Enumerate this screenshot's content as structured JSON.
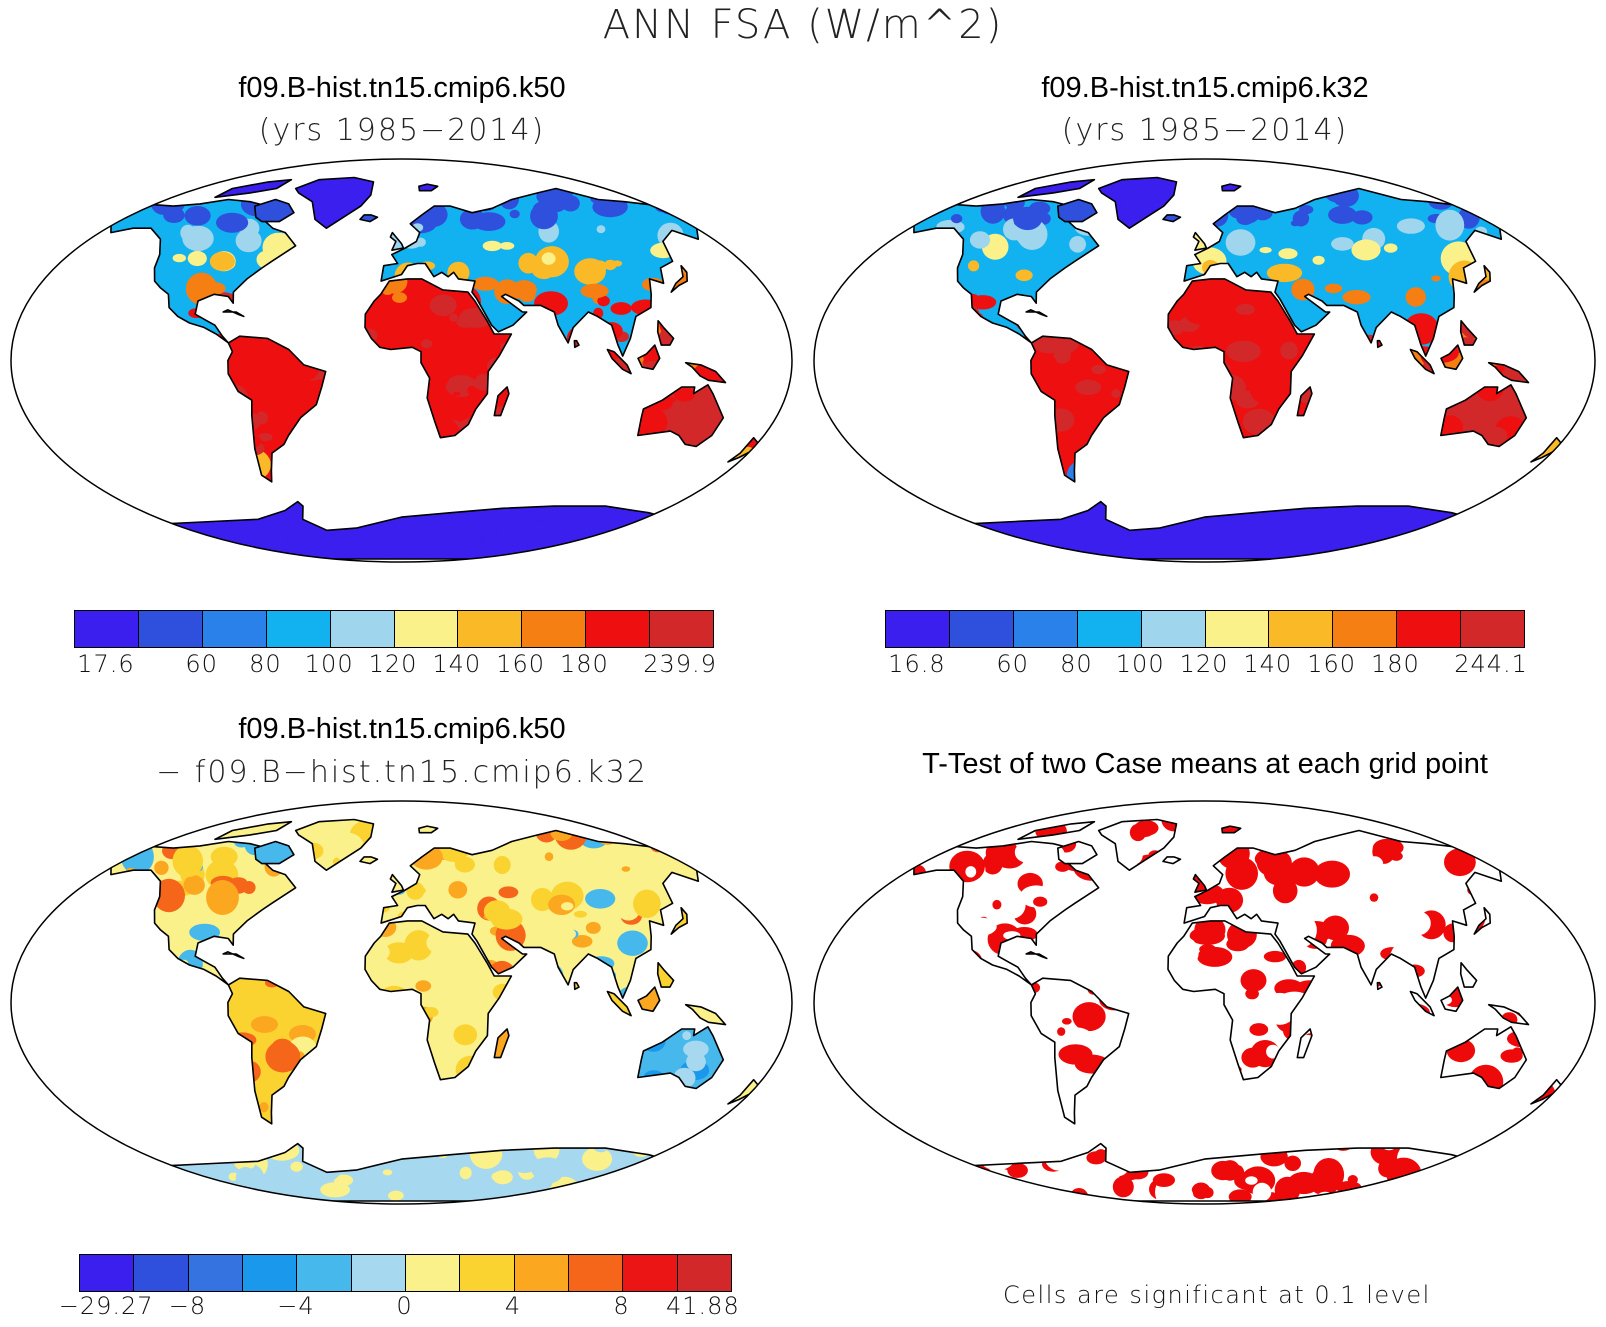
{
  "figure": {
    "title": "ANN FSA (W/m^2)"
  },
  "colors": {
    "abs": [
      "#3b1fef",
      "#2e50dc",
      "#2a81ea",
      "#12b1f0",
      "#9fd6ee",
      "#fbf18a",
      "#fab926",
      "#f57f12",
      "#ee1010",
      "#d3282a"
    ],
    "diff": [
      "#3b1fef",
      "#2e50dc",
      "#3574e0",
      "#1a98ec",
      "#47b8ec",
      "#a6d8ef",
      "#fbf18a",
      "#fad331",
      "#fba720",
      "#f5661a",
      "#ec1515",
      "#d3282a"
    ],
    "sig": "#ee0a0a",
    "land_outline": "#000000"
  },
  "panels": [
    {
      "id": "k50",
      "title": "f09.B-hist.tn15.cmip6.k50",
      "subtitle": "(yrs 1985−2014)",
      "colorbar_labels": [
        "17.6",
        "60",
        "80",
        "100",
        "120",
        "140",
        "160",
        "180",
        "239.9"
      ]
    },
    {
      "id": "k32",
      "title": "f09.B-hist.tn15.cmip6.k32",
      "subtitle": "(yrs 1985−2014)",
      "colorbar_labels": [
        "16.8",
        "60",
        "80",
        "100",
        "120",
        "140",
        "160",
        "180",
        "244.1"
      ]
    },
    {
      "id": "diff",
      "title": "f09.B-hist.tn15.cmip6.k50",
      "subtitle": "− f09.B−hist.tn15.cmip6.k32",
      "colorbar_labels": [
        "−29.27",
        "−8",
        "−4",
        "0",
        "4",
        "8",
        "41.88"
      ]
    },
    {
      "id": "ttest",
      "title": "T-Test of two Case means at each grid point",
      "footnote": "Cells are significant at 0.1 level"
    }
  ]
}
